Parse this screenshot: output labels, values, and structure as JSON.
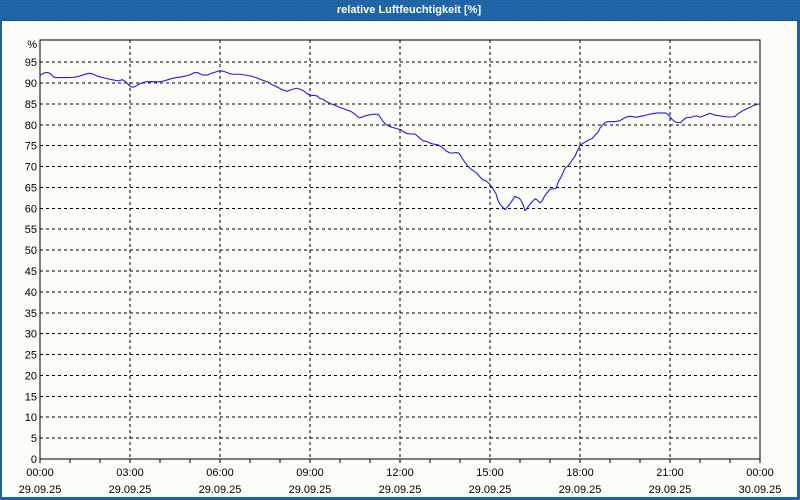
{
  "window": {
    "title": "relative Luftfeuchtigkeit [%]"
  },
  "colors": {
    "titlebar": "#1e63a3",
    "titlebar_dots": "#2b70b0",
    "titlebar_edge": "#164e82",
    "window_border": "#1e63a3",
    "background": "#fcfcf8",
    "grid": "#000000",
    "frame": "#000000",
    "tick_text": "#000000",
    "title_text": "#ffffff",
    "series_line": "#2020e0"
  },
  "chart_data": {
    "type": "line",
    "title": "relative Luftfeuchtigkeit [%]",
    "ylabel": "%",
    "xlabel": "",
    "ylim": [
      0,
      100.3
    ],
    "ytick_start": 0,
    "ytick_step": 5,
    "ytick_end": 95,
    "grid": "dashed",
    "legend": "none",
    "x_minor_tick_minutes": 60,
    "x_major_ticks": [
      {
        "minutes": 0,
        "time": "00:00",
        "date": "29.09.25"
      },
      {
        "minutes": 180,
        "time": "03:00",
        "date": "29.09.25"
      },
      {
        "minutes": 360,
        "time": "06:00",
        "date": "29.09.25"
      },
      {
        "minutes": 540,
        "time": "09:00",
        "date": "29.09.25"
      },
      {
        "minutes": 720,
        "time": "12:00",
        "date": "29.09.25"
      },
      {
        "minutes": 900,
        "time": "15:00",
        "date": "29.09.25"
      },
      {
        "minutes": 1080,
        "time": "18:00",
        "date": "29.09.25"
      },
      {
        "minutes": 1260,
        "time": "21:00",
        "date": "29.09.25"
      },
      {
        "minutes": 1440,
        "time": "00:00",
        "date": "30.09.25"
      }
    ],
    "series": [
      {
        "name": "relative Luftfeuchtigkeit",
        "unit": "%",
        "points_format": "[minutes_since_00:00, percent]",
        "points": [
          [
            0,
            91.8
          ],
          [
            4,
            92.1
          ],
          [
            8,
            92.4
          ],
          [
            12,
            92.5
          ],
          [
            16,
            92.5
          ],
          [
            20,
            92.3
          ],
          [
            24,
            91.8
          ],
          [
            28,
            91.4
          ],
          [
            32,
            91.3
          ],
          [
            44,
            91.3
          ],
          [
            56,
            91.3
          ],
          [
            64,
            91.35
          ],
          [
            72,
            91.45
          ],
          [
            80,
            91.7
          ],
          [
            88,
            92.0
          ],
          [
            96,
            92.3
          ],
          [
            102,
            92.3
          ],
          [
            108,
            92.0
          ],
          [
            116,
            91.6
          ],
          [
            124,
            91.35
          ],
          [
            136,
            91.0
          ],
          [
            144,
            90.8
          ],
          [
            152,
            90.6
          ],
          [
            156,
            90.5
          ],
          [
            160,
            90.6
          ],
          [
            164,
            90.8
          ],
          [
            168,
            90.6
          ],
          [
            172,
            90.2
          ],
          [
            176,
            89.7
          ],
          [
            180,
            89.2
          ],
          [
            184,
            89.0
          ],
          [
            188,
            89.05
          ],
          [
            192,
            89.3
          ],
          [
            196,
            89.6
          ],
          [
            204,
            90.05
          ],
          [
            212,
            90.3
          ],
          [
            222,
            90.35
          ],
          [
            232,
            90.3
          ],
          [
            240,
            90.3
          ],
          [
            248,
            90.5
          ],
          [
            256,
            90.8
          ],
          [
            264,
            91.1
          ],
          [
            272,
            91.3
          ],
          [
            280,
            91.4
          ],
          [
            288,
            91.6
          ],
          [
            296,
            91.8
          ],
          [
            304,
            92.2
          ],
          [
            308,
            92.45
          ],
          [
            312,
            92.5
          ],
          [
            316,
            92.45
          ],
          [
            320,
            92.2
          ],
          [
            326,
            91.9
          ],
          [
            334,
            91.9
          ],
          [
            340,
            92.2
          ],
          [
            348,
            92.5
          ],
          [
            356,
            92.85
          ],
          [
            364,
            92.9
          ],
          [
            370,
            92.7
          ],
          [
            376,
            92.4
          ],
          [
            384,
            92.1
          ],
          [
            392,
            92.1
          ],
          [
            400,
            92.1
          ],
          [
            408,
            91.95
          ],
          [
            416,
            91.8
          ],
          [
            424,
            91.6
          ],
          [
            432,
            91.3
          ],
          [
            440,
            90.9
          ],
          [
            448,
            90.55
          ],
          [
            456,
            90.2
          ],
          [
            464,
            89.6
          ],
          [
            472,
            89.2
          ],
          [
            478,
            88.8
          ],
          [
            484,
            88.4
          ],
          [
            490,
            88.2
          ],
          [
            494,
            88.0
          ],
          [
            500,
            88.3
          ],
          [
            508,
            88.6
          ],
          [
            514,
            88.75
          ],
          [
            520,
            88.5
          ],
          [
            526,
            88.2
          ],
          [
            530,
            87.9
          ],
          [
            536,
            87.3
          ],
          [
            542,
            87.0
          ],
          [
            548,
            87.05
          ],
          [
            554,
            86.9
          ],
          [
            560,
            86.3
          ],
          [
            566,
            86.1
          ],
          [
            572,
            85.6
          ],
          [
            580,
            85.1
          ],
          [
            588,
            84.8
          ],
          [
            596,
            84.35
          ],
          [
            604,
            84.0
          ],
          [
            612,
            83.6
          ],
          [
            620,
            83.3
          ],
          [
            626,
            82.9
          ],
          [
            632,
            82.3
          ],
          [
            636,
            81.9
          ],
          [
            640,
            81.7
          ],
          [
            644,
            81.85
          ],
          [
            650,
            82.1
          ],
          [
            656,
            82.3
          ],
          [
            664,
            82.5
          ],
          [
            674,
            82.5
          ],
          [
            678,
            82.3
          ],
          [
            680,
            81.9
          ],
          [
            686,
            80.8
          ],
          [
            692,
            80.1
          ],
          [
            698,
            79.7
          ],
          [
            704,
            79.4
          ],
          [
            710,
            79.2
          ],
          [
            716,
            79.0
          ],
          [
            722,
            78.8
          ],
          [
            728,
            78.3
          ],
          [
            734,
            77.9
          ],
          [
            742,
            77.8
          ],
          [
            750,
            77.8
          ],
          [
            754,
            77.4
          ],
          [
            758,
            77.0
          ],
          [
            762,
            76.5
          ],
          [
            768,
            76.1
          ],
          [
            774,
            76.0
          ],
          [
            780,
            75.6
          ],
          [
            788,
            75.35
          ],
          [
            796,
            75.2
          ],
          [
            802,
            74.8
          ],
          [
            808,
            74.2
          ],
          [
            814,
            73.6
          ],
          [
            820,
            73.25
          ],
          [
            826,
            73.25
          ],
          [
            832,
            73.35
          ],
          [
            838,
            73.2
          ],
          [
            842,
            72.5
          ],
          [
            846,
            71.7
          ],
          [
            850,
            71.0
          ],
          [
            856,
            70.1
          ],
          [
            862,
            69.4
          ],
          [
            868,
            68.9
          ],
          [
            874,
            68.35
          ],
          [
            880,
            67.5
          ],
          [
            886,
            66.8
          ],
          [
            892,
            66.6
          ],
          [
            898,
            66.0
          ],
          [
            904,
            65.1
          ],
          [
            908,
            64.3
          ],
          [
            912,
            63.5
          ],
          [
            916,
            61.9
          ],
          [
            920,
            61.0
          ],
          [
            924,
            60.4
          ],
          [
            930,
            59.7
          ],
          [
            936,
            60.5
          ],
          [
            942,
            61.4
          ],
          [
            946,
            62.2
          ],
          [
            950,
            62.9
          ],
          [
            954,
            62.6
          ],
          [
            958,
            62.5
          ],
          [
            962,
            61.9
          ],
          [
            966,
            60.9
          ],
          [
            970,
            59.45
          ],
          [
            974,
            60.0
          ],
          [
            980,
            61.0
          ],
          [
            986,
            61.8
          ],
          [
            990,
            62.3
          ],
          [
            994,
            62.05
          ],
          [
            1000,
            61.3
          ],
          [
            1004,
            61.7
          ],
          [
            1008,
            62.7
          ],
          [
            1012,
            63.4
          ],
          [
            1016,
            64.0
          ],
          [
            1020,
            64.6
          ],
          [
            1032,
            64.75
          ],
          [
            1036,
            66.2
          ],
          [
            1042,
            67.5
          ],
          [
            1046,
            68.5
          ],
          [
            1050,
            69.6
          ],
          [
            1056,
            70.2
          ],
          [
            1060,
            70.8
          ],
          [
            1064,
            71.5
          ],
          [
            1070,
            72.5
          ],
          [
            1074,
            73.6
          ],
          [
            1080,
            75.0
          ],
          [
            1084,
            75.45
          ],
          [
            1090,
            75.85
          ],
          [
            1096,
            76.3
          ],
          [
            1104,
            76.7
          ],
          [
            1110,
            77.5
          ],
          [
            1116,
            78.2
          ],
          [
            1120,
            79.2
          ],
          [
            1126,
            80.0
          ],
          [
            1130,
            80.55
          ],
          [
            1136,
            80.75
          ],
          [
            1144,
            80.75
          ],
          [
            1152,
            80.8
          ],
          [
            1160,
            81.0
          ],
          [
            1170,
            81.7
          ],
          [
            1176,
            82.0
          ],
          [
            1184,
            82.0
          ],
          [
            1190,
            81.8
          ],
          [
            1200,
            82.0
          ],
          [
            1210,
            82.25
          ],
          [
            1220,
            82.55
          ],
          [
            1230,
            82.75
          ],
          [
            1236,
            82.85
          ],
          [
            1244,
            82.85
          ],
          [
            1252,
            82.8
          ],
          [
            1256,
            82.5
          ],
          [
            1260,
            81.9
          ],
          [
            1264,
            81.3
          ],
          [
            1268,
            80.9
          ],
          [
            1272,
            80.6
          ],
          [
            1282,
            80.55
          ],
          [
            1284,
            80.9
          ],
          [
            1290,
            81.5
          ],
          [
            1294,
            81.75
          ],
          [
            1304,
            81.8
          ],
          [
            1306,
            82.05
          ],
          [
            1314,
            82.1
          ],
          [
            1318,
            81.9
          ],
          [
            1322,
            81.85
          ],
          [
            1326,
            82.1
          ],
          [
            1330,
            82.25
          ],
          [
            1336,
            82.55
          ],
          [
            1340,
            82.75
          ],
          [
            1346,
            82.5
          ],
          [
            1350,
            82.3
          ],
          [
            1358,
            82.2
          ],
          [
            1366,
            82.0
          ],
          [
            1374,
            81.9
          ],
          [
            1386,
            81.9
          ],
          [
            1390,
            82.0
          ],
          [
            1394,
            82.45
          ],
          [
            1403,
            83.2
          ],
          [
            1411,
            83.7
          ],
          [
            1419,
            84.15
          ],
          [
            1428,
            84.65
          ],
          [
            1436,
            84.95
          ],
          [
            1440,
            85.0
          ]
        ]
      }
    ]
  }
}
